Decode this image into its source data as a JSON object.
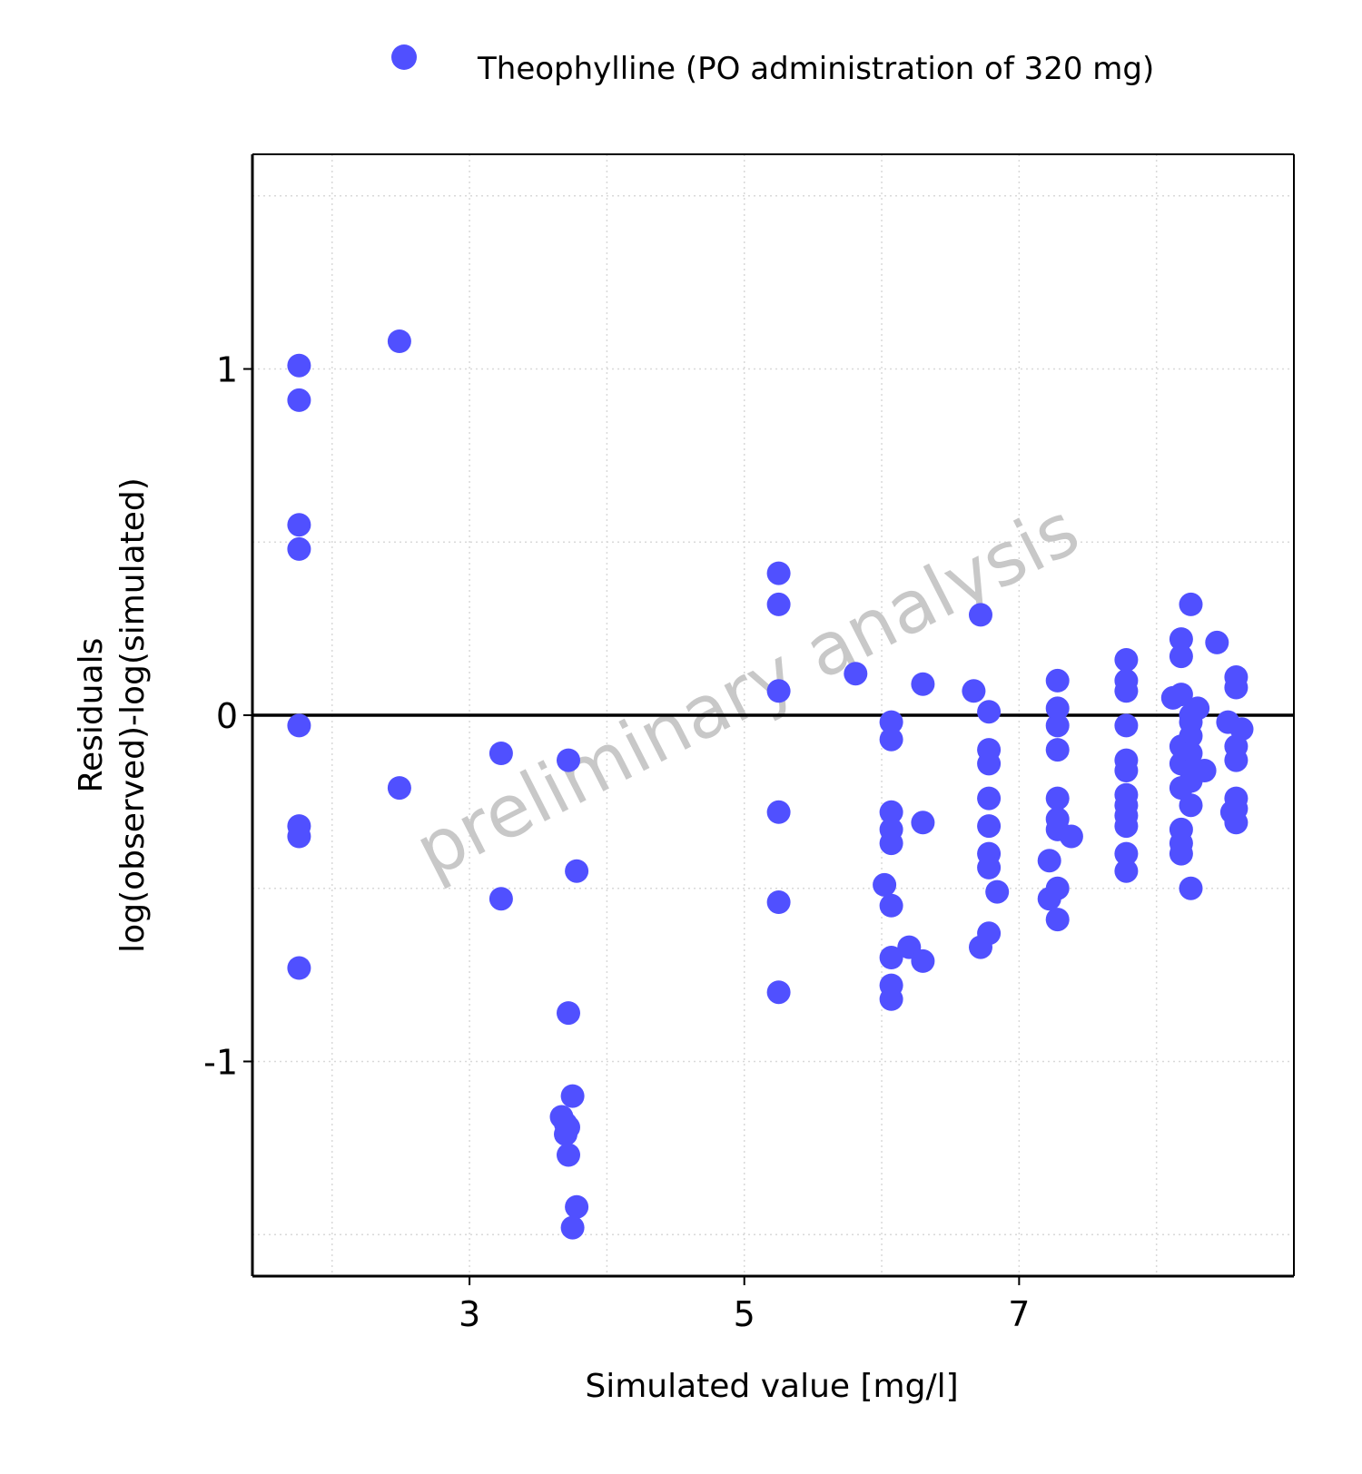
{
  "colors": {
    "series": "#5050FF",
    "zero_line": "#000000",
    "grid": "#d9d9d9",
    "watermark": "#c8c8c8"
  },
  "watermark": "preliminary analysis",
  "chart_data": {
    "type": "scatter",
    "xlabel": "Simulated value [mg/l]",
    "ylabel_line1": "Residuals",
    "ylabel_line2": "log(observed)-log(simulated)",
    "xlim": [
      1.42,
      9.0
    ],
    "ylim": [
      -1.62,
      1.62
    ],
    "x_ticks": [
      3,
      5,
      7
    ],
    "x_tick_labels": [
      "3",
      "5",
      "7"
    ],
    "x_minor_grid": [
      2,
      4,
      6,
      8
    ],
    "y_ticks": [
      -1,
      0,
      1
    ],
    "y_tick_labels": [
      "-1",
      "0",
      "1"
    ],
    "y_minor_grid": [
      -1.5,
      -0.5,
      0.5,
      1.5
    ],
    "grid": true,
    "legend_position": "top",
    "series": [
      {
        "name": "Theophylline (PO administration of 320 mg)",
        "x": [
          1.76,
          1.76,
          1.76,
          1.76,
          1.76,
          1.76,
          1.76,
          1.76,
          2.49,
          2.49,
          3.23,
          3.23,
          3.72,
          3.78,
          3.72,
          3.75,
          3.67,
          3.7,
          3.72,
          3.7,
          3.72,
          3.78,
          3.75,
          5.25,
          5.25,
          5.25,
          5.25,
          5.25,
          5.25,
          5.81,
          6.07,
          6.07,
          6.07,
          6.07,
          6.07,
          6.02,
          6.07,
          6.07,
          6.2,
          6.07,
          6.07,
          6.3,
          6.3,
          6.3,
          6.67,
          6.72,
          6.72,
          6.78,
          6.78,
          6.78,
          6.78,
          6.78,
          6.78,
          6.78,
          6.84,
          6.78,
          7.28,
          7.28,
          7.28,
          7.28,
          7.28,
          7.28,
          7.28,
          7.38,
          7.22,
          7.22,
          7.28,
          7.28,
          7.78,
          7.78,
          7.78,
          7.78,
          7.78,
          7.78,
          7.78,
          7.78,
          7.78,
          7.78,
          7.78,
          7.78,
          8.18,
          8.18,
          8.25,
          8.12,
          8.18,
          8.25,
          8.3,
          8.25,
          8.25,
          8.18,
          8.25,
          8.18,
          8.25,
          8.35,
          8.18,
          8.25,
          8.25,
          8.18,
          8.18,
          8.18,
          8.25,
          8.44,
          8.58,
          8.58,
          8.52,
          8.62,
          8.58,
          8.58,
          8.58,
          8.58,
          8.55,
          8.58
        ],
        "y": [
          1.01,
          0.91,
          0.55,
          0.48,
          -0.03,
          -0.32,
          -0.35,
          -0.73,
          1.08,
          -0.21,
          -0.11,
          -0.53,
          -0.13,
          -0.45,
          -0.86,
          -1.1,
          -1.16,
          -1.18,
          -1.19,
          -1.21,
          -1.27,
          -1.42,
          -1.48,
          0.41,
          0.32,
          0.07,
          -0.28,
          -0.54,
          -0.8,
          0.12,
          -0.02,
          -0.07,
          -0.28,
          -0.33,
          -0.37,
          -0.49,
          -0.55,
          -0.7,
          -0.67,
          -0.78,
          -0.82,
          -0.31,
          -0.71,
          0.09,
          0.07,
          0.29,
          -0.67,
          0.01,
          -0.1,
          -0.14,
          -0.24,
          -0.32,
          -0.4,
          -0.44,
          -0.51,
          -0.63,
          0.1,
          0.02,
          -0.03,
          -0.1,
          -0.24,
          -0.3,
          -0.33,
          -0.35,
          -0.42,
          -0.53,
          -0.5,
          -0.59,
          0.16,
          0.1,
          0.07,
          -0.03,
          -0.13,
          -0.16,
          -0.23,
          -0.26,
          -0.29,
          -0.32,
          -0.4,
          -0.45,
          0.22,
          0.17,
          0.32,
          0.05,
          0.06,
          0.0,
          0.02,
          -0.02,
          -0.06,
          -0.09,
          -0.11,
          -0.14,
          -0.16,
          -0.16,
          -0.21,
          -0.26,
          -0.5,
          -0.33,
          -0.37,
          -0.4,
          -0.19,
          0.21,
          0.11,
          0.08,
          -0.02,
          -0.04,
          -0.09,
          -0.13,
          -0.24,
          -0.27,
          -0.28,
          -0.31
        ]
      }
    ]
  }
}
